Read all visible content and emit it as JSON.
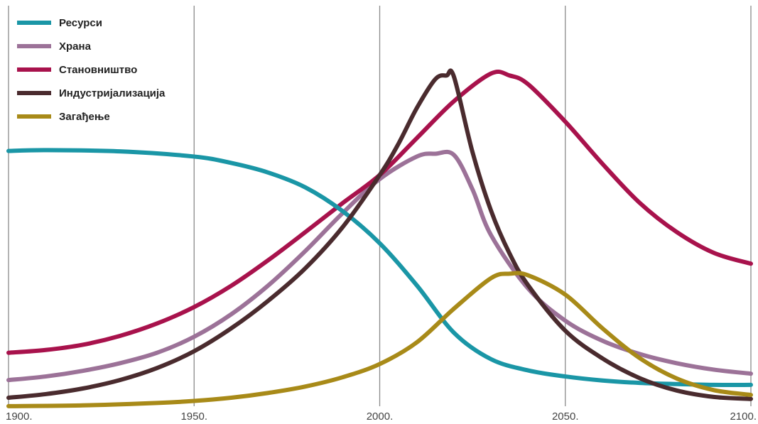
{
  "chart_data": {
    "type": "line",
    "title": "",
    "xlabel": "",
    "ylabel": "",
    "xlim": [
      1900,
      2100
    ],
    "ylim": [
      0,
      1
    ],
    "grid": true,
    "legend_position": "top-left",
    "x_ticks": [
      "1900.",
      "1950.",
      "2000.",
      "2050.",
      "2100."
    ],
    "x_tick_values": [
      1900,
      1950,
      2000,
      2050,
      2100
    ],
    "series": [
      {
        "name": "Ресурси",
        "color": "#1a96a6",
        "x": [
          1900,
          1910,
          1930,
          1950,
          1960,
          1970,
          1980,
          1990,
          2000,
          2010,
          2020,
          2030,
          2040,
          2050,
          2060,
          2070,
          2080,
          2090,
          2100
        ],
        "y": [
          0.638,
          0.64,
          0.637,
          0.624,
          0.608,
          0.584,
          0.547,
          0.488,
          0.408,
          0.303,
          0.185,
          0.119,
          0.091,
          0.076,
          0.066,
          0.06,
          0.057,
          0.055,
          0.055
        ]
      },
      {
        "name": "Храна",
        "color": "#9c7298",
        "x": [
          1900,
          1910,
          1920,
          1930,
          1940,
          1950,
          1960,
          1970,
          1980,
          1990,
          2000,
          2010,
          2015,
          2020,
          2025,
          2030,
          2040,
          2050,
          2060,
          2070,
          2080,
          2090,
          2100
        ],
        "y": [
          0.067,
          0.076,
          0.09,
          0.109,
          0.135,
          0.175,
          0.231,
          0.303,
          0.389,
          0.483,
          0.568,
          0.624,
          0.631,
          0.628,
          0.542,
          0.428,
          0.295,
          0.215,
          0.165,
          0.132,
          0.109,
          0.093,
          0.083
        ]
      },
      {
        "name": "Становништво",
        "color": "#a8124c",
        "x": [
          1900,
          1910,
          1920,
          1930,
          1940,
          1950,
          1960,
          1970,
          1980,
          1990,
          2000,
          2010,
          2020,
          2030,
          2035,
          2040,
          2050,
          2060,
          2070,
          2080,
          2090,
          2100
        ],
        "y": [
          0.135,
          0.142,
          0.155,
          0.177,
          0.208,
          0.249,
          0.302,
          0.366,
          0.436,
          0.508,
          0.578,
          0.67,
          0.762,
          0.831,
          0.826,
          0.804,
          0.711,
          0.606,
          0.509,
          0.436,
          0.384,
          0.357
        ]
      },
      {
        "name": "Индустријализација",
        "color": "#4a2b2e",
        "x": [
          1900,
          1910,
          1920,
          1930,
          1940,
          1950,
          1960,
          1970,
          1980,
          1990,
          2000,
          2005,
          2010,
          2015,
          2018,
          2020,
          2025,
          2030,
          2035,
          2040,
          2050,
          2060,
          2070,
          2080,
          2090,
          2100
        ],
        "y": [
          0.023,
          0.032,
          0.046,
          0.067,
          0.097,
          0.139,
          0.196,
          0.265,
          0.346,
          0.448,
          0.578,
          0.655,
          0.745,
          0.817,
          0.826,
          0.823,
          0.635,
          0.489,
          0.382,
          0.303,
          0.19,
          0.121,
          0.072,
          0.041,
          0.025,
          0.02
        ]
      },
      {
        "name": "Загађење",
        "color": "#a88a18",
        "x": [
          1900,
          1920,
          1940,
          1950,
          1960,
          1970,
          1980,
          1990,
          2000,
          2010,
          2020,
          2030,
          2035,
          2040,
          2050,
          2060,
          2070,
          2080,
          2090,
          2100
        ],
        "y": [
          0.002,
          0.004,
          0.01,
          0.015,
          0.023,
          0.035,
          0.051,
          0.074,
          0.107,
          0.161,
          0.245,
          0.321,
          0.332,
          0.328,
          0.28,
          0.196,
          0.122,
          0.071,
          0.042,
          0.03
        ]
      }
    ]
  }
}
